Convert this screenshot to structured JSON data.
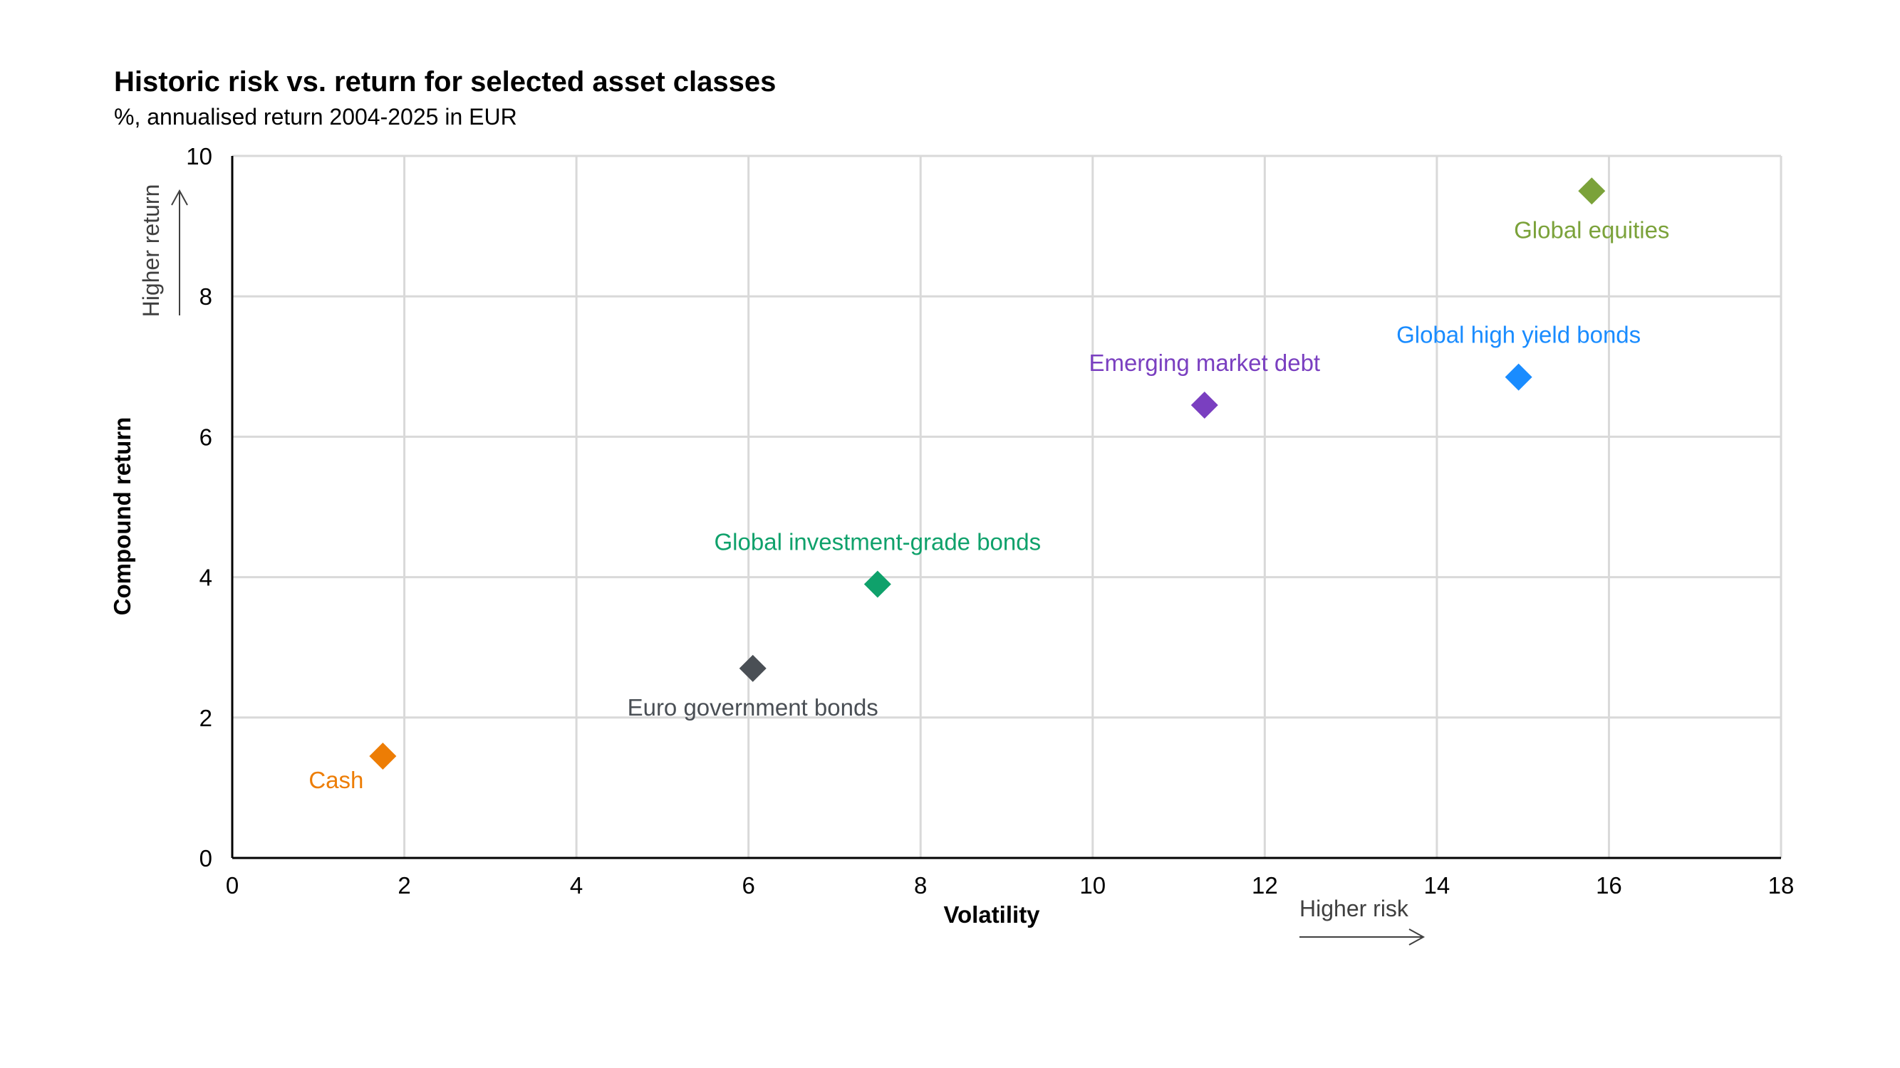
{
  "chart_data": {
    "type": "scatter",
    "title": "Historic risk vs. return for selected asset classes",
    "subtitle": "%, annualised return 2004-2025 in EUR",
    "xlabel": "Volatility",
    "ylabel": "Compound return",
    "xlim": [
      0,
      18
    ],
    "ylim": [
      0,
      10
    ],
    "xticks": [
      0,
      2,
      4,
      6,
      8,
      10,
      12,
      14,
      16,
      18
    ],
    "yticks": [
      0,
      2,
      4,
      6,
      8,
      10
    ],
    "grid": true,
    "annotations": {
      "x_direction": "Higher risk",
      "y_direction": "Higher return"
    },
    "series": [
      {
        "name": "Cash",
        "x": 1.75,
        "y": 1.45,
        "color": "#ED7D05",
        "label_position": "below-left"
      },
      {
        "name": "Euro government bonds",
        "x": 6.05,
        "y": 2.7,
        "color": "#4A4F55",
        "label_position": "below"
      },
      {
        "name": "Global investment-grade bonds",
        "x": 7.5,
        "y": 3.9,
        "color": "#0FA16B",
        "label_position": "above"
      },
      {
        "name": "Emerging market debt",
        "x": 11.3,
        "y": 6.45,
        "color": "#7A3FC0",
        "label_position": "above"
      },
      {
        "name": "Global high yield bonds",
        "x": 14.95,
        "y": 6.85,
        "color": "#1A8CFF",
        "label_position": "above"
      },
      {
        "name": "Global equities",
        "x": 15.8,
        "y": 9.5,
        "color": "#7BA23A",
        "label_position": "below"
      }
    ]
  }
}
